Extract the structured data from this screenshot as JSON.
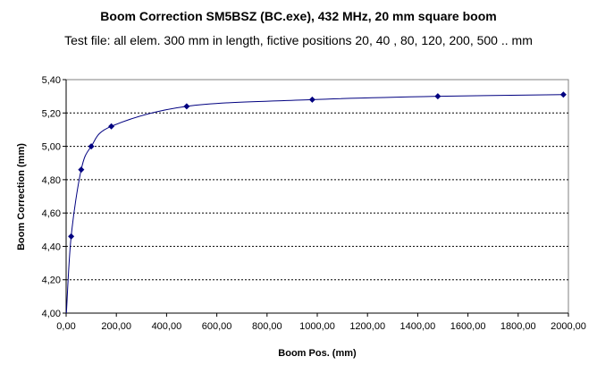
{
  "chart_data": {
    "type": "scatter",
    "title": "Boom Correction SM5BSZ (BC.exe), 432 MHz, 20 mm square boom",
    "subtitle": "Test file: all elem. 300 mm in length, fictive positions 20, 40 , 80, 120, 200, 500 .. mm",
    "xlabel": "Boom Pos. (mm)",
    "ylabel": "Boom Correction (mm)",
    "xlim": [
      0,
      2000
    ],
    "ylim": [
      4.0,
      5.4
    ],
    "x_ticks": [
      "0,00",
      "200,00",
      "400,00",
      "600,00",
      "800,00",
      "1000,00",
      "1200,00",
      "1400,00",
      "1600,00",
      "1800,00",
      "2000,00"
    ],
    "y_ticks": [
      "4,00",
      "4,20",
      "4,40",
      "4,60",
      "4,80",
      "5,00",
      "5,20",
      "5,40"
    ],
    "grid": "horizontal dashed",
    "line_color": "#000080",
    "marker_color": "#000080",
    "series": [
      {
        "x": [
          20,
          60,
          100,
          180,
          480,
          980,
          1480,
          1980
        ],
        "y": [
          4.46,
          4.86,
          5.0,
          5.12,
          5.24,
          5.28,
          5.3,
          5.31
        ]
      }
    ]
  }
}
